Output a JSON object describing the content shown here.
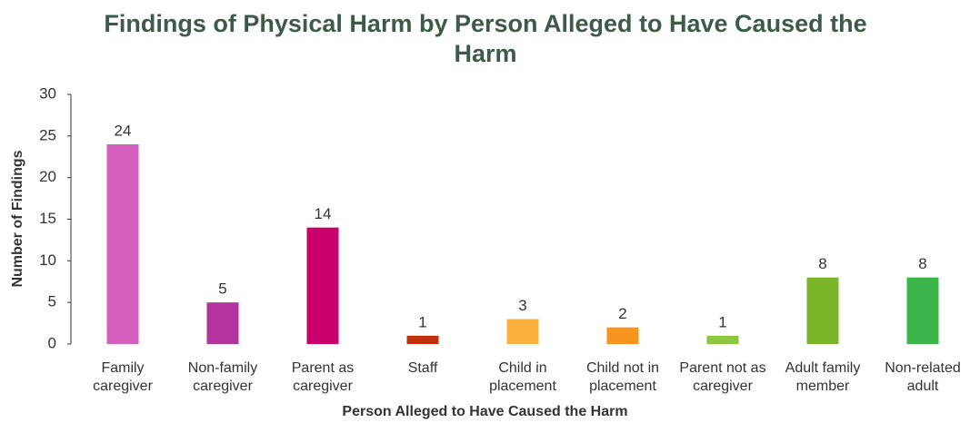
{
  "chart_data": {
    "type": "bar",
    "title": "Findings of Physical Harm by Person Alleged to Have Caused the Harm",
    "x_label": "Person Alleged to Have Caused the Harm",
    "y_label": "Number of Findings",
    "categories": [
      "Family caregiver",
      "Non-family caregiver",
      "Parent as caregiver",
      "Staff",
      "Child in placement",
      "Child not in placement",
      "Parent not as caregiver",
      "Adult family member",
      "Non-related adult"
    ],
    "values": [
      24,
      5,
      14,
      1,
      3,
      2,
      1,
      8,
      8
    ],
    "colors": [
      "#d55fbf",
      "#b5339c",
      "#c9006b",
      "#c0300a",
      "#fbb040",
      "#f7941d",
      "#8dc63f",
      "#7ab52a",
      "#3cb54a"
    ],
    "ylim": [
      0,
      30
    ],
    "yticks": [
      0,
      5,
      10,
      15,
      20,
      25,
      30
    ],
    "grid": false
  }
}
